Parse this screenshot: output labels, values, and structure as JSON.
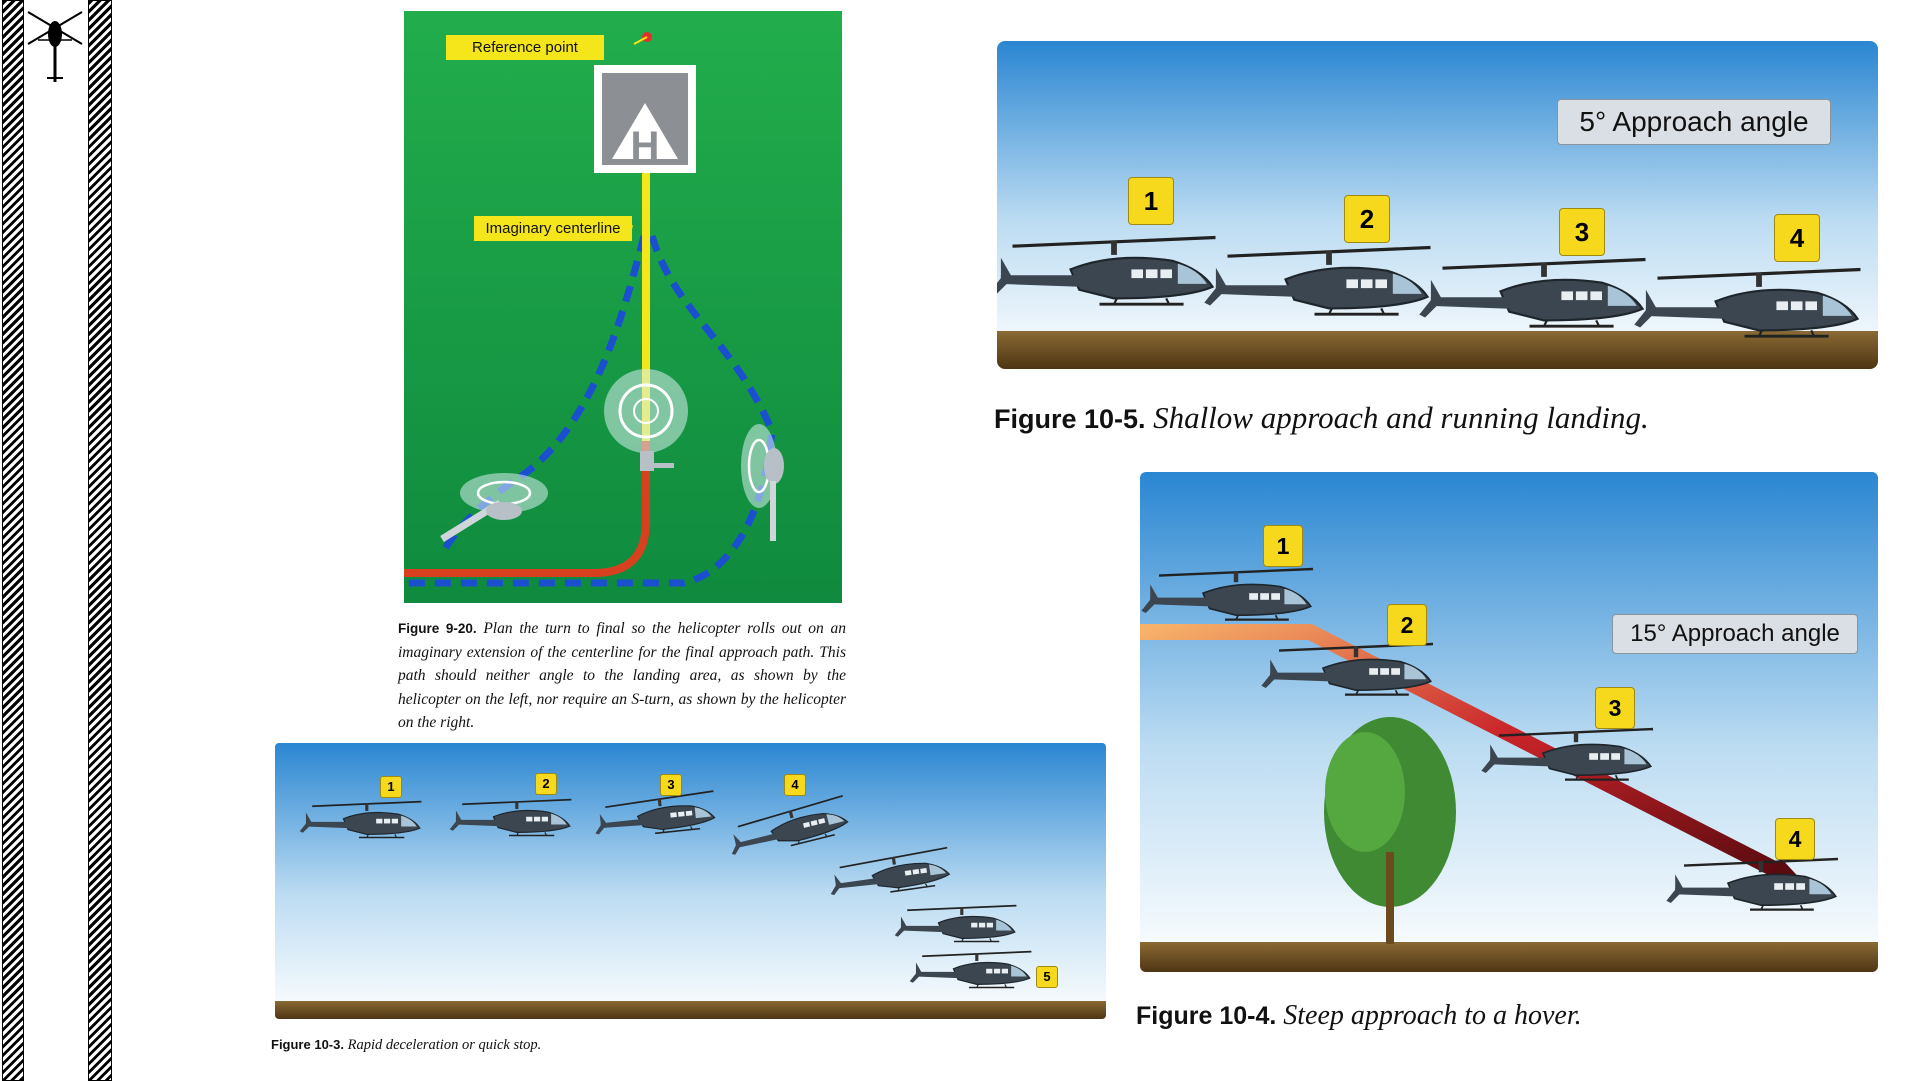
{
  "sidebar": {
    "icon": "helicopter-icon"
  },
  "fig_9_20": {
    "label_reference": "Reference point",
    "label_centerline": "Imaginary centerline",
    "helipad_letter": "H",
    "caption_number": "Figure 9-20.",
    "caption_text": "Plan the turn to final so the helicopter rolls out on an imaginary extension of the centerline for the final approach path. This path should neither angle to the landing area, as shown by the helicopter on the left, nor require an S-turn, as shown by the helicopter on the right."
  },
  "fig_10_5": {
    "angle_label": "5° Approach angle",
    "markers": [
      "1",
      "2",
      "3",
      "4"
    ],
    "caption_number": "Figure 10-5.",
    "caption_text": "Shallow approach and running landing."
  },
  "fig_10_4": {
    "angle_label": "15° Approach angle",
    "markers": [
      "1",
      "2",
      "3",
      "4"
    ],
    "caption_number": "Figure 10-4.",
    "caption_text": "Steep approach to a hover."
  },
  "fig_10_3": {
    "markers": [
      "1",
      "2",
      "3",
      "4",
      "5"
    ],
    "caption_number": "Figure 10-3.",
    "caption_text": "Rapid deceleration or quick stop."
  },
  "colors": {
    "grass": "#1fa54a",
    "label_yellow": "#f4e61a",
    "path_red": "#d9401f",
    "path_blue": "#1a4fd0",
    "sky_top": "#2f8fd6",
    "ground": "#6b4a1e"
  }
}
